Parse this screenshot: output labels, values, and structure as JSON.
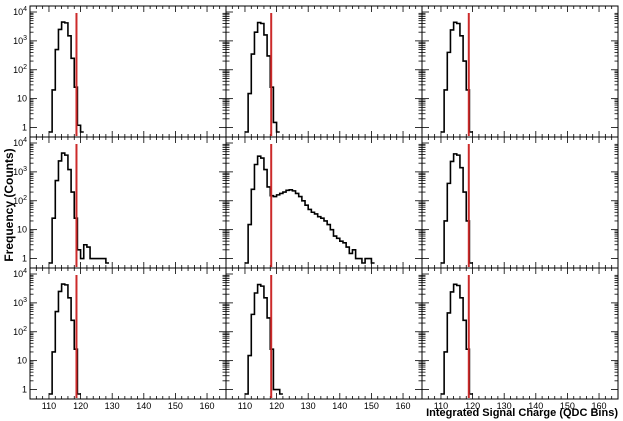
{
  "chart_data": {
    "type": "histogram-grid",
    "layout": {
      "rows": 3,
      "cols": 3
    },
    "ylabel": "Frequency (Counts)",
    "xlabel": "Integrated Signal Charge (QDC Bins)",
    "xlim": [
      104,
      166
    ],
    "x_ticks": [
      110,
      120,
      130,
      140,
      150,
      160
    ],
    "y_scale": "log",
    "ylim": [
      0.7,
      10000
    ],
    "y_tick_labels": [
      {
        "value": 10000,
        "base": "10",
        "exp": "4"
      },
      {
        "value": 1000,
        "base": "10",
        "exp": "3"
      },
      {
        "value": 100,
        "base": "10",
        "exp": "2"
      },
      {
        "value": 10,
        "base": "10",
        "exp": ""
      },
      {
        "value": 1,
        "base": "1",
        "exp": ""
      }
    ],
    "cut_line_color": "#cc2a2a",
    "line_color": "#000000",
    "panels": [
      {
        "row": 0,
        "col": 0,
        "cut": 118.7,
        "bins": [
          [
            110,
            0.7
          ],
          [
            111,
            20
          ],
          [
            112,
            500
          ],
          [
            113,
            2500
          ],
          [
            114,
            4500
          ],
          [
            115,
            4200
          ],
          [
            116,
            1500
          ],
          [
            117,
            250
          ],
          [
            118,
            25
          ],
          [
            119,
            1.2
          ],
          [
            120,
            0.7
          ]
        ]
      },
      {
        "row": 0,
        "col": 1,
        "cut": 118.3,
        "bins": [
          [
            110,
            0.7
          ],
          [
            111,
            15
          ],
          [
            112,
            350
          ],
          [
            113,
            2000
          ],
          [
            114,
            4300
          ],
          [
            115,
            4000
          ],
          [
            116,
            1600
          ],
          [
            117,
            300
          ],
          [
            118,
            25
          ],
          [
            119,
            1.5
          ],
          [
            120,
            0.7
          ]
        ]
      },
      {
        "row": 0,
        "col": 2,
        "cut": 118.8,
        "bins": [
          [
            110,
            0.7
          ],
          [
            111,
            20
          ],
          [
            112,
            400
          ],
          [
            113,
            2400
          ],
          [
            114,
            4400
          ],
          [
            115,
            4000
          ],
          [
            116,
            1500
          ],
          [
            117,
            200
          ],
          [
            118,
            20
          ],
          [
            119,
            0.7
          ]
        ]
      },
      {
        "row": 1,
        "col": 0,
        "cut": 118.7,
        "bins": [
          [
            110,
            0.7
          ],
          [
            111,
            25
          ],
          [
            112,
            500
          ],
          [
            113,
            2400
          ],
          [
            114,
            4500
          ],
          [
            115,
            3800
          ],
          [
            116,
            1200
          ],
          [
            117,
            200
          ],
          [
            118,
            25
          ],
          [
            119,
            2
          ],
          [
            120,
            1
          ],
          [
            121,
            3
          ],
          [
            122,
            2.5
          ],
          [
            123,
            1
          ],
          [
            124,
            1
          ],
          [
            125,
            1
          ],
          [
            126,
            1
          ],
          [
            127,
            1
          ],
          [
            128,
            0.7
          ]
        ]
      },
      {
        "row": 1,
        "col": 1,
        "cut": 118.3,
        "bins": [
          [
            110,
            0.7
          ],
          [
            111,
            15
          ],
          [
            112,
            250
          ],
          [
            113,
            1800
          ],
          [
            114,
            3500
          ],
          [
            115,
            3000
          ],
          [
            116,
            1200
          ],
          [
            117,
            300
          ],
          [
            118,
            150
          ],
          [
            119,
            140
          ],
          [
            120,
            160
          ],
          [
            121,
            180
          ],
          [
            122,
            200
          ],
          [
            123,
            230
          ],
          [
            124,
            240
          ],
          [
            125,
            220
          ],
          [
            126,
            180
          ],
          [
            127,
            140
          ],
          [
            128,
            100
          ],
          [
            129,
            70
          ],
          [
            130,
            50
          ],
          [
            131,
            40
          ],
          [
            132,
            35
          ],
          [
            133,
            28
          ],
          [
            134,
            25
          ],
          [
            135,
            20
          ],
          [
            136,
            15
          ],
          [
            137,
            10
          ],
          [
            138,
            6
          ],
          [
            139,
            5
          ],
          [
            140,
            4
          ],
          [
            141,
            3.5
          ],
          [
            142,
            2.5
          ],
          [
            143,
            1.5
          ],
          [
            144,
            2
          ],
          [
            145,
            1
          ],
          [
            146,
            1
          ],
          [
            147,
            0.7
          ],
          [
            148,
            1
          ],
          [
            149,
            1
          ],
          [
            150,
            0.7
          ]
        ]
      },
      {
        "row": 1,
        "col": 2,
        "cut": 118.8,
        "bins": [
          [
            110,
            0.7
          ],
          [
            111,
            20
          ],
          [
            112,
            400
          ],
          [
            113,
            2300
          ],
          [
            114,
            4200
          ],
          [
            115,
            3800
          ],
          [
            116,
            1400
          ],
          [
            117,
            200
          ],
          [
            118,
            20
          ],
          [
            119,
            0.7
          ]
        ]
      },
      {
        "row": 2,
        "col": 0,
        "cut": 118.7,
        "bins": [
          [
            110,
            0.7
          ],
          [
            111,
            20
          ],
          [
            112,
            500
          ],
          [
            113,
            2500
          ],
          [
            114,
            4500
          ],
          [
            115,
            4200
          ],
          [
            116,
            1500
          ],
          [
            117,
            250
          ],
          [
            118,
            25
          ],
          [
            119,
            0.7
          ]
        ]
      },
      {
        "row": 2,
        "col": 1,
        "cut": 118.3,
        "bins": [
          [
            110,
            0.7
          ],
          [
            111,
            15
          ],
          [
            112,
            400
          ],
          [
            113,
            2200
          ],
          [
            114,
            4300
          ],
          [
            115,
            3800
          ],
          [
            116,
            1500
          ],
          [
            117,
            300
          ],
          [
            118,
            25
          ],
          [
            119,
            1
          ],
          [
            120,
            1
          ],
          [
            121,
            0.7
          ]
        ]
      },
      {
        "row": 2,
        "col": 2,
        "cut": 118.8,
        "bins": [
          [
            110,
            0.7
          ],
          [
            111,
            20
          ],
          [
            112,
            450
          ],
          [
            113,
            2400
          ],
          [
            114,
            4400
          ],
          [
            115,
            4000
          ],
          [
            116,
            1500
          ],
          [
            117,
            250
          ],
          [
            118,
            25
          ],
          [
            119,
            0.7
          ]
        ]
      }
    ]
  }
}
